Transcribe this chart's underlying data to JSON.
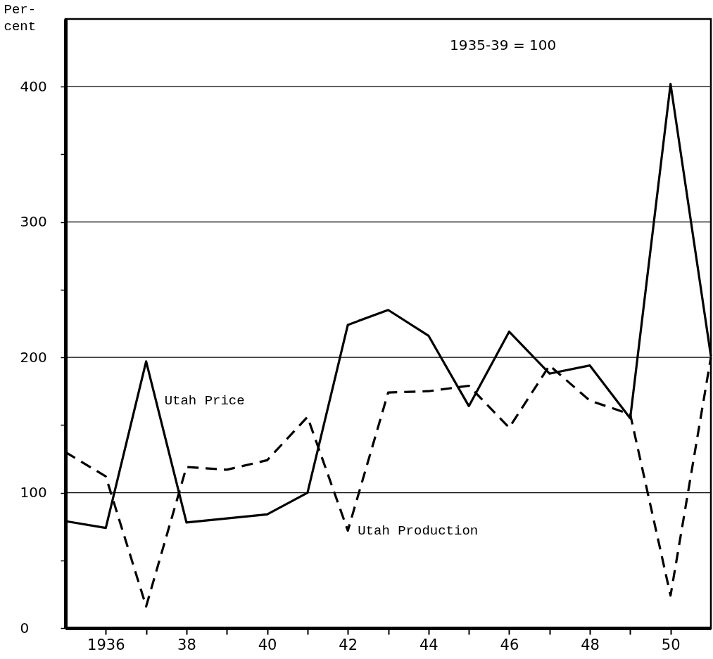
{
  "chart_data": {
    "type": "line",
    "ylabel": "Per-cent",
    "annotations": [
      "1935-39 = 100"
    ],
    "x": [
      1935,
      1936,
      1937,
      1938,
      1939,
      1940,
      1941,
      1942,
      1943,
      1944,
      1945,
      1946,
      1947,
      1948,
      1949,
      1950,
      1951
    ],
    "series": [
      {
        "name": "Utah Price",
        "color": "#000000",
        "line_style": "solid",
        "values": [
          79,
          74,
          197,
          78,
          81,
          84,
          100,
          224,
          235,
          216,
          164,
          219,
          188,
          194,
          155,
          402,
          201
        ]
      },
      {
        "name": "Utah Production",
        "color": "#000000",
        "line_style": "dashed",
        "values": [
          130,
          112,
          16,
          119,
          117,
          124,
          156,
          72,
          174,
          175,
          179,
          148,
          194,
          168,
          158,
          24,
          200
        ]
      }
    ],
    "xlim": [
      1935,
      1951
    ],
    "xticks": [
      {
        "value": 1936,
        "label": "1936"
      },
      {
        "value": 1937,
        "label": null
      },
      {
        "value": 1938,
        "label": "38"
      },
      {
        "value": 1939,
        "label": null
      },
      {
        "value": 1940,
        "label": "40"
      },
      {
        "value": 1941,
        "label": null
      },
      {
        "value": 1942,
        "label": "42"
      },
      {
        "value": 1943,
        "label": null
      },
      {
        "value": 1944,
        "label": "44"
      },
      {
        "value": 1945,
        "label": null
      },
      {
        "value": 1946,
        "label": "46"
      },
      {
        "value": 1947,
        "label": null
      },
      {
        "value": 1948,
        "label": "48"
      },
      {
        "value": 1949,
        "label": null
      },
      {
        "value": 1950,
        "label": "50"
      }
    ],
    "ylim": [
      0,
      450
    ],
    "yticks": [
      0,
      {
        "value": 50,
        "label": null
      },
      100,
      {
        "value": 150,
        "label": null
      },
      200,
      {
        "value": 250,
        "label": null
      },
      300,
      {
        "value": 350,
        "label": null
      },
      400
    ],
    "grid": "y",
    "marker": "none"
  }
}
